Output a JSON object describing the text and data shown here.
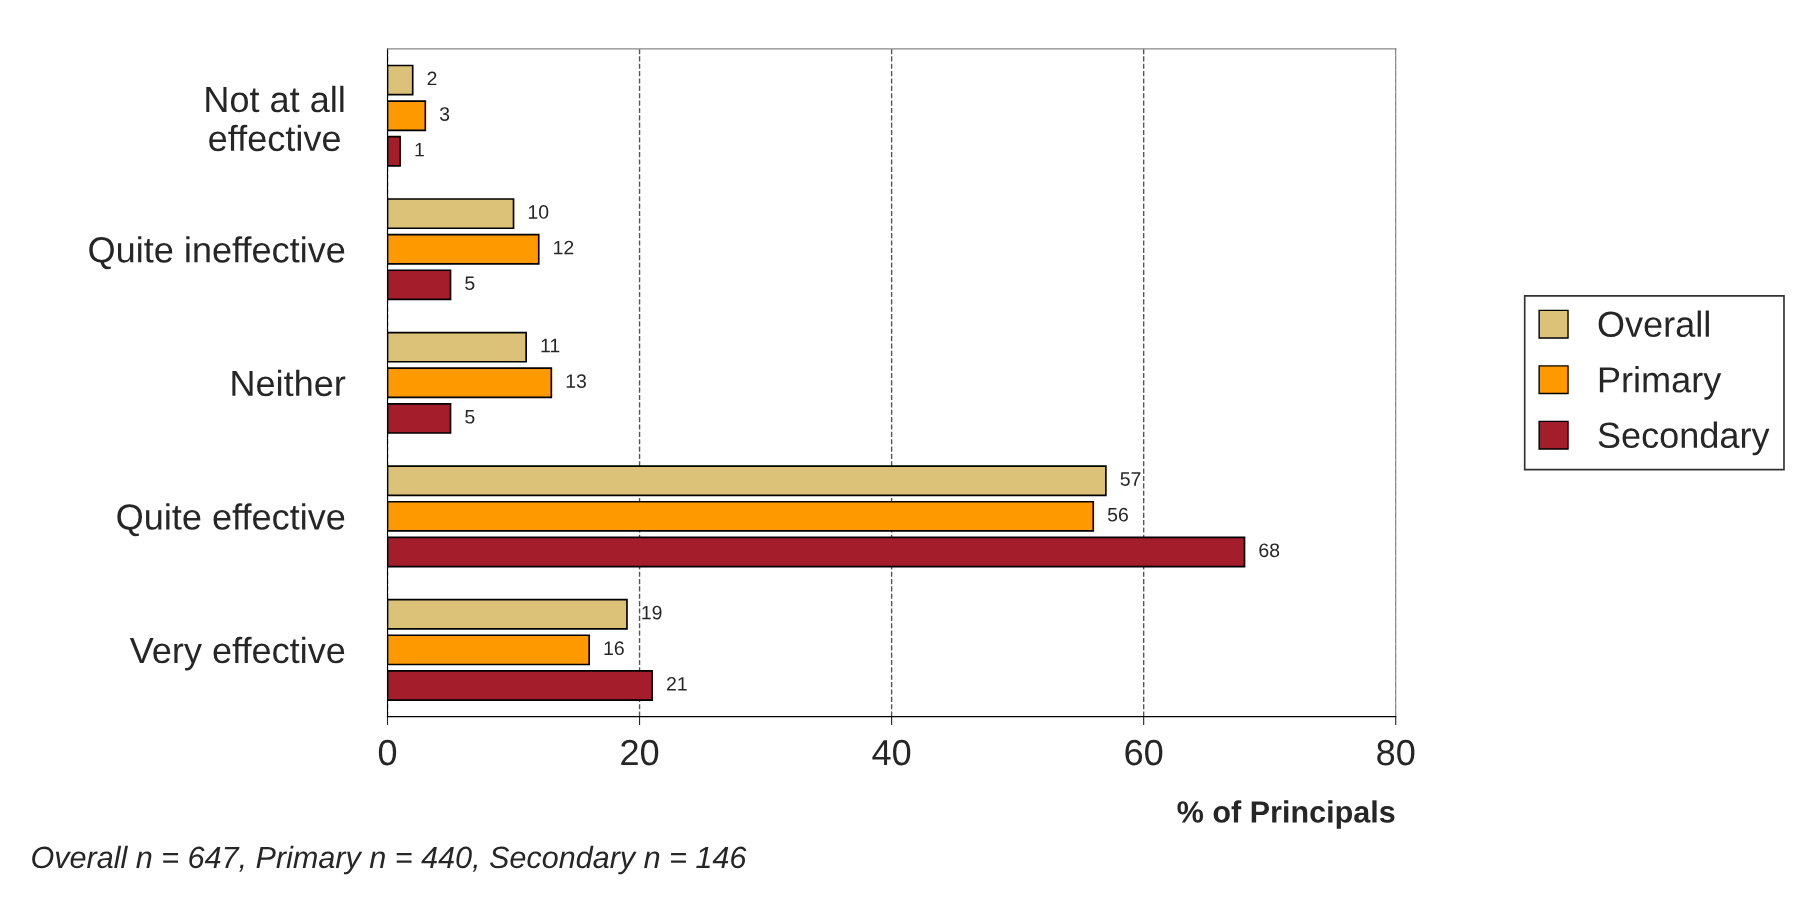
{
  "chart_data": {
    "type": "bar",
    "orientation": "horizontal",
    "categories": [
      "Not at all\neffective",
      "Quite ineffective",
      "Neither",
      "Quite effective",
      "Very effective"
    ],
    "series": [
      {
        "name": "Overall",
        "color": "#dcc278",
        "values": [
          2,
          10,
          11,
          57,
          19
        ]
      },
      {
        "name": "Primary",
        "color": "#ff9900",
        "values": [
          3,
          12,
          13,
          56,
          16
        ]
      },
      {
        "name": "Secondary",
        "color": "#a31d2b",
        "values": [
          1,
          5,
          5,
          68,
          21
        ]
      }
    ],
    "xlim": [
      0,
      80
    ],
    "xticks": [
      0,
      20,
      40,
      60,
      80
    ],
    "xlabel": "% of Principals",
    "grid": "x",
    "legend": "right",
    "data_labels": true,
    "annotations": [
      "Overall n = 647, Primary n = 440, Secondary n = 146"
    ]
  }
}
